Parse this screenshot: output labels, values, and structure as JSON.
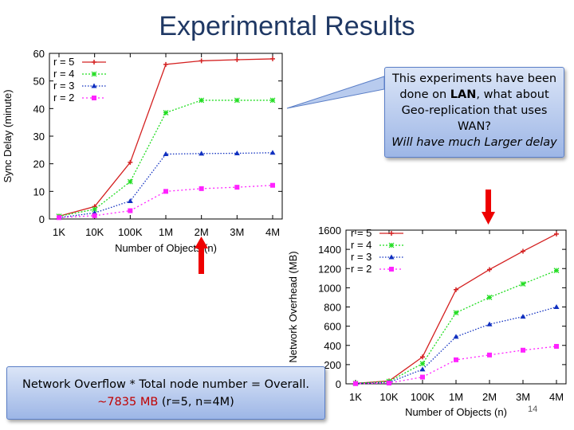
{
  "slide": {
    "title": "Experimental Results",
    "page_number": "14"
  },
  "callout": {
    "line1": "This experiments have been",
    "line2_pre": "done on ",
    "line2_bold": "LAN",
    "line2_post": ", what about",
    "line3": "Geo-replication that uses",
    "line4": "WAN?",
    "line5": "Will have much Larger delay"
  },
  "note": {
    "line1": "Network Overflow * Total node number = Overall.",
    "line2_red": "~7835 MB",
    "line2_rest": " (r=5, n=4M)"
  },
  "colors": {
    "r5": "#d42020",
    "r4": "#22dd22",
    "r3": "#1030c0",
    "r2": "#ff22ff",
    "arrow": "#ee0000"
  },
  "chart_data": [
    {
      "type": "line",
      "title": "",
      "xlabel": "Number of Objects (n)",
      "ylabel": "Sync Delay (minute)",
      "categories": [
        "1K",
        "10K",
        "100K",
        "1M",
        "2M",
        "3M",
        "4M"
      ],
      "ylim": [
        0,
        60
      ],
      "yticks": [
        0,
        10,
        20,
        30,
        40,
        50,
        60
      ],
      "grid": false,
      "legend": "top-left",
      "series": [
        {
          "name": "r = 5",
          "values": [
            1,
            4.5,
            20.5,
            56,
            57.3,
            57.7,
            58
          ]
        },
        {
          "name": "r = 4",
          "values": [
            1,
            3.5,
            13.5,
            38.5,
            43,
            43,
            43
          ]
        },
        {
          "name": "r = 3",
          "values": [
            0.5,
            2.2,
            6.5,
            23.5,
            23.7,
            23.8,
            24
          ]
        },
        {
          "name": "r = 2",
          "values": [
            0.5,
            1.2,
            3,
            10,
            11,
            11.5,
            12.2
          ]
        }
      ]
    },
    {
      "type": "line",
      "title": "",
      "xlabel": "Number of Objects (n)",
      "ylabel": "Network Overhead (MB)",
      "categories": [
        "1K",
        "10K",
        "100K",
        "1M",
        "2M",
        "3M",
        "4M"
      ],
      "ylim": [
        0,
        1600
      ],
      "yticks": [
        0,
        200,
        400,
        600,
        800,
        1000,
        1200,
        1400,
        1600
      ],
      "grid": false,
      "legend": "top-left",
      "series": [
        {
          "name": "r = 5",
          "values": [
            5,
            30,
            280,
            980,
            1190,
            1380,
            1560
          ]
        },
        {
          "name": "r = 4",
          "values": [
            5,
            25,
            210,
            740,
            900,
            1040,
            1180
          ]
        },
        {
          "name": "r = 3",
          "values": [
            4,
            15,
            150,
            490,
            620,
            700,
            800
          ]
        },
        {
          "name": "r = 2",
          "values": [
            2,
            8,
            70,
            250,
            300,
            350,
            390
          ]
        }
      ]
    }
  ]
}
